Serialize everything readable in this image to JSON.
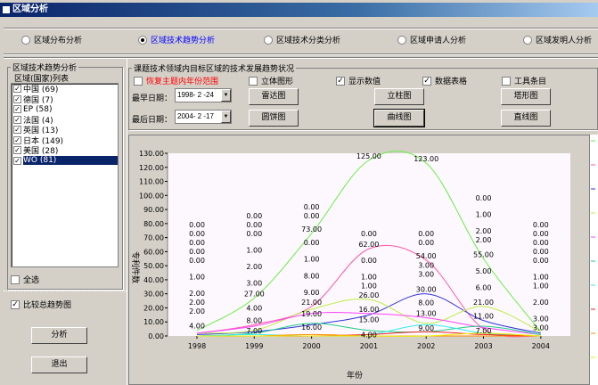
{
  "window": {
    "title": "区域分析"
  },
  "tabs": [
    {
      "label": "区域分布分析",
      "selected": false
    },
    {
      "label": "区域技术趋势分析",
      "selected": true
    },
    {
      "label": "区域技术分类分析",
      "selected": false
    },
    {
      "label": "区域申请人分析",
      "selected": false
    },
    {
      "label": "区域发明人分析",
      "selected": false
    }
  ],
  "left": {
    "group_title": "区域技术趋势分析",
    "list_title": "区域(国家)列表",
    "items": [
      {
        "label": "中国 (69)",
        "checked": true
      },
      {
        "label": "德国 (7)",
        "checked": true
      },
      {
        "label": "EP (58)",
        "checked": true
      },
      {
        "label": "法国 (4)",
        "checked": true
      },
      {
        "label": "英国 (13)",
        "checked": true
      },
      {
        "label": "日本 (149)",
        "checked": true
      },
      {
        "label": "美国 (28)",
        "checked": true
      },
      {
        "label": "WO (81)",
        "checked": true,
        "selected": true
      }
    ],
    "select_all": "全选",
    "compare_total": "比较总趋势图",
    "analyze_button": "分析",
    "exit_button": "退出"
  },
  "right": {
    "group_title": "课题技术领域内目标区域的技术发展趋势状况",
    "restore_range": "恢复主题内年份范围",
    "restore_color": "#ff0000",
    "options": [
      {
        "label": "立体图形",
        "checked": false
      },
      {
        "label": "显示数值",
        "checked": true
      },
      {
        "label": "数据表格",
        "checked": true
      },
      {
        "label": "工具条目",
        "checked": false
      }
    ],
    "earliest_label": "最早日期：",
    "earliest_value": "1998- 2 -24",
    "latest_label": "最后日期：",
    "latest_value": "2004- 2 -17",
    "buttons": [
      "雷达图",
      "立柱图",
      "塔形图",
      "圆饼图",
      "曲线图",
      "直线图"
    ]
  },
  "chart_data": {
    "type": "line",
    "smooth": true,
    "xlabel": "年份",
    "ylabel": "专利件数",
    "categories": [
      "1998",
      "1999",
      "2000",
      "2001",
      "2002",
      "2003",
      "2004"
    ],
    "ylim": [
      0,
      130
    ],
    "yticks": [
      "0.00",
      "10.00",
      "20.00",
      "30.00",
      "40.00",
      "50.00",
      "60.00",
      "70.00",
      "80.00",
      "90.00",
      "100.00",
      "110.00",
      "120.00",
      "130.00"
    ],
    "show_values": true,
    "series": [
      {
        "color": "#66ee44",
        "values": [
          4,
          27,
          73,
          125,
          123,
          55,
          3
        ]
      },
      {
        "color": "#ff55aa",
        "values": [
          2,
          8,
          21,
          62,
          54,
          5,
          0
        ]
      },
      {
        "color": "#3333dd",
        "values": [
          1,
          3,
          8,
          15,
          30,
          11,
          2
        ]
      },
      {
        "color": "#bbee44",
        "values": [
          2,
          4,
          19,
          26,
          9,
          21,
          3
        ]
      },
      {
        "color": "#ff44ff",
        "values": [
          2,
          7,
          16,
          16,
          13,
          6,
          1
        ]
      },
      {
        "color": "#22cc88",
        "values": [
          0,
          2,
          9,
          4,
          3,
          7,
          1
        ]
      },
      {
        "color": "#33eeee",
        "values": [
          0,
          1,
          0,
          1,
          8,
          2,
          0
        ]
      },
      {
        "color": "#ee2222",
        "values": [
          0,
          0,
          0,
          1,
          3,
          1,
          0
        ]
      },
      {
        "color": "#ff8800",
        "values": [
          0,
          0,
          1,
          0,
          0,
          0,
          0
        ]
      },
      {
        "color": "#eeee00",
        "values": [
          0,
          0,
          0,
          0,
          0,
          2,
          0
        ]
      }
    ]
  }
}
